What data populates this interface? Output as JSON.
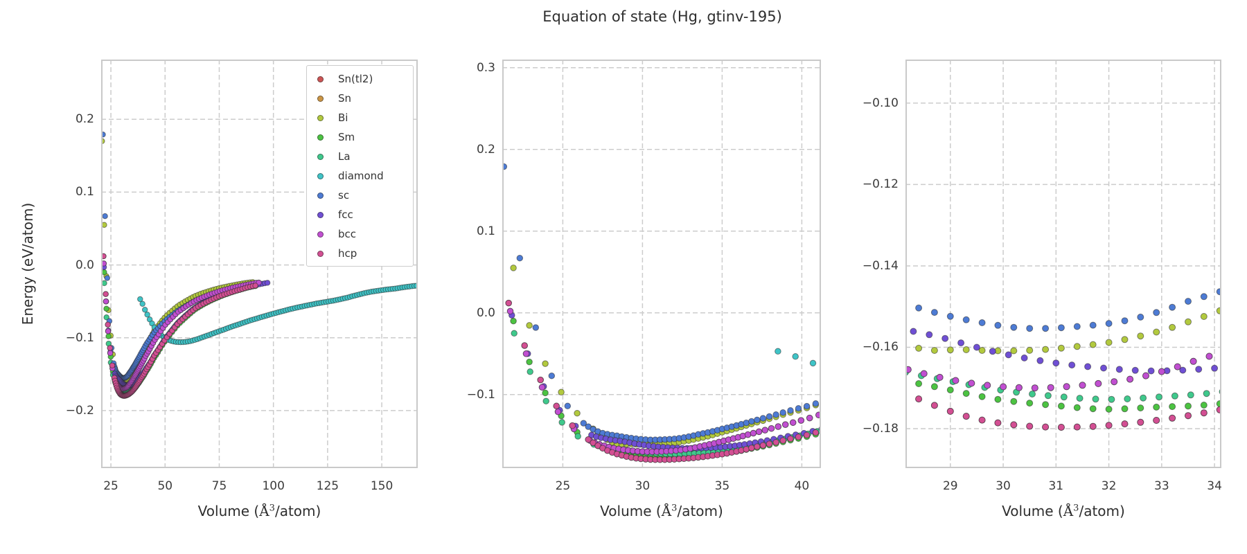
{
  "title": "Equation of state (Hg, gtinv-195)",
  "ylabel": "Energy (eV/atom)",
  "xlabel": {
    "pre": "Volume (",
    "ang": "Å",
    "sup": "3",
    "post": "/atom)",
    "full": "Volume (Å³/atom)"
  },
  "chart_data": {
    "type": "scatter",
    "title": "Equation of state (Hg, gtinv-195)",
    "ylabel": "Energy (eV/atom)",
    "xlabel": "Volume (Å³/atom)",
    "grid": "dashed gray, on",
    "legend_position": "upper right of first subplot",
    "note": "Three panels plot the same energy-volume scatter data at increasing zoom: full range, EOS minimum region, and fine minimum detail. Sn(tl2) and Sn coincide with (are hidden beneath) hcp and bcc respectively.",
    "subplots": [
      {
        "name": "overview",
        "xlim": [
          20.5,
          166.6
        ],
        "ylim": [
          -0.279,
          0.282
        ],
        "xticks": [
          25,
          50,
          75,
          100,
          125,
          150
        ],
        "xtick_labels": [
          "25",
          "50",
          "75",
          "100",
          "125",
          "150"
        ],
        "yticks": [
          0.2,
          0.1,
          0.0,
          -0.1,
          -0.2
        ],
        "ytick_labels": [
          "0.2",
          "0.1",
          "0.0",
          "−0.1",
          "−0.2"
        ],
        "marker_radius": 3.75
      },
      {
        "name": "minimum-region",
        "xlim": [
          21.2,
          41.2
        ],
        "ylim": [
          -0.19,
          0.31
        ],
        "xticks": [
          25,
          30,
          35,
          40
        ],
        "xtick_labels": [
          "25",
          "30",
          "35",
          "40"
        ],
        "yticks": [
          0.3,
          0.2,
          0.1,
          0.0,
          -0.1
        ],
        "ytick_labels": [
          "0.3",
          "0.2",
          "0.1",
          "0.0",
          "−0.1"
        ],
        "marker_radius": 4.25
      },
      {
        "name": "fine-detail",
        "xlim": [
          28.15,
          34.13
        ],
        "ylim": [
          -0.1897,
          -0.0893
        ],
        "xticks": [
          29,
          30,
          31,
          32,
          33,
          34
        ],
        "xtick_labels": [
          "29",
          "30",
          "31",
          "32",
          "33",
          "34"
        ],
        "yticks": [
          -0.1,
          -0.12,
          -0.14,
          -0.16,
          -0.18
        ],
        "ytick_labels": [
          "−0.10",
          "−0.12",
          "−0.14",
          "−0.16",
          "−0.18"
        ],
        "marker_radius": 4.5
      }
    ],
    "volume_sampling": {
      "left_step": 1.0,
      "dense_step_26_to_36": 0.3,
      "step_growth_past_36": 0.06,
      "max_step": 1.2,
      "diamond_step": 1.1
    },
    "series": [
      {
        "name": "Sn(tl2)",
        "color": "#cd5454",
        "points": [
          [
            21.6,
            0.012
          ],
          [
            22.6,
            -0.04
          ],
          [
            23.6,
            -0.082
          ],
          [
            24.6,
            -0.114
          ],
          [
            25.6,
            -0.138
          ],
          [
            26.6,
            -0.155
          ],
          [
            27.6,
            -0.1665
          ],
          [
            28.4,
            -0.1727
          ],
          [
            29.4,
            -0.1773
          ],
          [
            30.4,
            -0.1793
          ],
          [
            31.4,
            -0.1796
          ],
          [
            32.4,
            -0.1787
          ],
          [
            33.4,
            -0.177
          ],
          [
            34.5,
            -0.1743
          ],
          [
            35.5,
            -0.171
          ],
          [
            37,
            -0.1645
          ],
          [
            39,
            -0.1553
          ],
          [
            41.2,
            -0.1443
          ],
          [
            45,
            -0.1245
          ],
          [
            50,
            -0.1025
          ],
          [
            56,
            -0.08
          ],
          [
            64,
            -0.0595
          ],
          [
            73,
            -0.0455
          ],
          [
            82,
            -0.036
          ],
          [
            92.5,
            -0.028
          ]
        ]
      },
      {
        "name": "Sn",
        "color": "#cc9544",
        "points": [
          [
            21.7,
            0.002
          ],
          [
            22.7,
            -0.05
          ],
          [
            23.7,
            -0.091
          ],
          [
            24.7,
            -0.121
          ],
          [
            25.7,
            -0.142
          ],
          [
            26.7,
            -0.156
          ],
          [
            27.7,
            -0.1632
          ],
          [
            28.6,
            -0.1668
          ],
          [
            29.6,
            -0.1692
          ],
          [
            30.6,
            -0.17
          ],
          [
            31.6,
            -0.1692
          ],
          [
            32.6,
            -0.1673
          ],
          [
            33.7,
            -0.163
          ],
          [
            35,
            -0.157
          ],
          [
            37,
            -0.147
          ],
          [
            39,
            -0.1365
          ],
          [
            41.2,
            -0.124
          ],
          [
            45,
            -0.104
          ],
          [
            50,
            -0.0825
          ],
          [
            56,
            -0.0645
          ],
          [
            64,
            -0.049
          ],
          [
            73,
            -0.038
          ],
          [
            82,
            -0.0305
          ],
          [
            94,
            -0.024
          ]
        ]
      },
      {
        "name": "Bi",
        "color": "#b2c93e",
        "points": [
          [
            20.9,
            0.17
          ],
          [
            21.7,
            0.072
          ],
          [
            22.7,
            -0.004
          ],
          [
            23.8,
            -0.058
          ],
          [
            24.9,
            -0.097
          ],
          [
            26,
            -0.125
          ],
          [
            27.1,
            -0.145
          ],
          [
            28.2,
            -0.1592
          ],
          [
            29.3,
            -0.1606
          ],
          [
            30.4,
            -0.1608
          ],
          [
            31.4,
            -0.1598
          ],
          [
            32.4,
            -0.1578
          ],
          [
            33.55,
            -0.1535
          ],
          [
            35,
            -0.146
          ],
          [
            37,
            -0.135
          ],
          [
            39,
            -0.1235
          ],
          [
            41.2,
            -0.1105
          ],
          [
            45,
            -0.0905
          ],
          [
            50,
            -0.0715
          ],
          [
            56,
            -0.056
          ],
          [
            64,
            -0.0425
          ],
          [
            73,
            -0.0335
          ],
          [
            82,
            -0.0275
          ],
          [
            91,
            -0.0235
          ]
        ]
      },
      {
        "name": "Sm",
        "color": "#4cc342",
        "points": [
          [
            21.9,
            -0.01
          ],
          [
            22.9,
            -0.06
          ],
          [
            23.9,
            -0.098
          ],
          [
            24.9,
            -0.126
          ],
          [
            25.9,
            -0.146
          ],
          [
            26.9,
            -0.159
          ],
          [
            27.9,
            -0.167
          ],
          [
            28.9,
            -0.1702
          ],
          [
            29.9,
            -0.1728
          ],
          [
            30.9,
            -0.1742
          ],
          [
            31.9,
            -0.1752
          ],
          [
            32.9,
            -0.1747
          ],
          [
            33.9,
            -0.1741
          ],
          [
            35,
            -0.172
          ],
          [
            37,
            -0.1655
          ],
          [
            39,
            -0.157
          ],
          [
            41.2,
            -0.1465
          ],
          [
            45,
            -0.1275
          ],
          [
            50,
            -0.1045
          ],
          [
            56,
            -0.082
          ],
          [
            64,
            -0.061
          ],
          [
            73,
            -0.0465
          ],
          [
            82,
            -0.0365
          ],
          [
            92,
            -0.029
          ]
        ]
      },
      {
        "name": "La",
        "color": "#3fc98c",
        "points": [
          [
            21.95,
            -0.025
          ],
          [
            22.95,
            -0.072
          ],
          [
            23.95,
            -0.108
          ],
          [
            24.95,
            -0.134
          ],
          [
            25.95,
            -0.151
          ],
          [
            26.95,
            -0.161
          ],
          [
            27.95,
            -0.1655
          ],
          [
            28.95,
            -0.1682
          ],
          [
            29.95,
            -0.1705
          ],
          [
            30.95,
            -0.172
          ],
          [
            31.95,
            -0.1728
          ],
          [
            32.95,
            -0.1722
          ],
          [
            33.95,
            -0.1712
          ],
          [
            35,
            -0.169
          ],
          [
            37,
            -0.1625
          ],
          [
            39,
            -0.154
          ],
          [
            41.2,
            -0.1435
          ],
          [
            45,
            -0.1245
          ],
          [
            50,
            -0.1015
          ],
          [
            56,
            -0.079
          ],
          [
            64,
            -0.0585
          ],
          [
            73,
            -0.0445
          ],
          [
            82,
            -0.035
          ],
          [
            93,
            -0.0275
          ]
        ]
      },
      {
        "name": "diamond",
        "color": "#3fc4c7",
        "points": [
          [
            38.5,
            -0.047
          ],
          [
            40.7,
            -0.0615
          ],
          [
            43,
            -0.0755
          ],
          [
            46,
            -0.0895
          ],
          [
            49,
            -0.0985
          ],
          [
            52,
            -0.1035
          ],
          [
            55.5,
            -0.1058
          ],
          [
            59,
            -0.1058
          ],
          [
            63,
            -0.1035
          ],
          [
            68,
            -0.0985
          ],
          [
            74,
            -0.092
          ],
          [
            81,
            -0.0845
          ],
          [
            89,
            -0.0765
          ],
          [
            98,
            -0.0685
          ],
          [
            108,
            -0.0605
          ],
          [
            119,
            -0.0535
          ],
          [
            131,
            -0.047
          ],
          [
            144,
            -0.0375
          ],
          [
            156,
            -0.0325
          ],
          [
            166.5,
            -0.0285
          ]
        ]
      },
      {
        "name": "sc",
        "color": "#4d7bd4",
        "points": [
          [
            21.3,
            0.179
          ],
          [
            22.3,
            0.067
          ],
          [
            23.3,
            -0.018
          ],
          [
            24.3,
            -0.077
          ],
          [
            25.3,
            -0.114
          ],
          [
            26.3,
            -0.135
          ],
          [
            27.3,
            -0.146
          ],
          [
            28.45,
            -0.1505
          ],
          [
            29.4,
            -0.1535
          ],
          [
            30.4,
            -0.1553
          ],
          [
            31.4,
            -0.1549
          ],
          [
            32.4,
            -0.1532
          ],
          [
            33.5,
            -0.1487
          ],
          [
            35,
            -0.142
          ],
          [
            37,
            -0.132
          ],
          [
            39,
            -0.121
          ],
          [
            41.2,
            -0.109
          ],
          [
            45,
            -0.0925
          ],
          [
            50,
            -0.0765
          ],
          [
            56,
            -0.0625
          ],
          [
            64,
            -0.049
          ],
          [
            73,
            -0.039
          ],
          [
            82,
            -0.0315
          ],
          [
            90,
            -0.0265
          ]
        ]
      },
      {
        "name": "fcc",
        "color": "#6f4fd4",
        "points": [
          [
            21.8,
            -0.003
          ],
          [
            22.8,
            -0.05
          ],
          [
            23.8,
            -0.09
          ],
          [
            24.8,
            -0.119
          ],
          [
            25.8,
            -0.1385
          ],
          [
            26.8,
            -0.1495
          ],
          [
            27.8,
            -0.1545
          ],
          [
            28.8,
            -0.1575
          ],
          [
            29.8,
            -0.161
          ],
          [
            30.8,
            -0.1635
          ],
          [
            31.8,
            -0.165
          ],
          [
            32.8,
            -0.1658
          ],
          [
            33.8,
            -0.1653
          ],
          [
            35.2,
            -0.1638
          ],
          [
            37,
            -0.159
          ],
          [
            39,
            -0.1515
          ],
          [
            41.2,
            -0.142
          ],
          [
            45,
            -0.124
          ],
          [
            50,
            -0.1015
          ],
          [
            56,
            -0.079
          ],
          [
            64,
            -0.0585
          ],
          [
            73,
            -0.0445
          ],
          [
            82,
            -0.035
          ],
          [
            88,
            -0.0305
          ],
          [
            97.5,
            -0.0245
          ]
        ]
      },
      {
        "name": "bcc",
        "color": "#c14fd1",
        "points": [
          [
            21.7,
            0.002
          ],
          [
            22.7,
            -0.05
          ],
          [
            23.7,
            -0.091
          ],
          [
            24.7,
            -0.121
          ],
          [
            25.7,
            -0.142
          ],
          [
            26.7,
            -0.156
          ],
          [
            27.7,
            -0.1632
          ],
          [
            28.6,
            -0.1668
          ],
          [
            29.6,
            -0.1692
          ],
          [
            30.6,
            -0.17
          ],
          [
            31.6,
            -0.1692
          ],
          [
            32.6,
            -0.1673
          ],
          [
            33.7,
            -0.163
          ],
          [
            35,
            -0.157
          ],
          [
            37,
            -0.147
          ],
          [
            39,
            -0.1365
          ],
          [
            41.2,
            -0.124
          ],
          [
            45,
            -0.104
          ],
          [
            50,
            -0.0825
          ],
          [
            56,
            -0.0645
          ],
          [
            64,
            -0.049
          ],
          [
            73,
            -0.038
          ],
          [
            82,
            -0.0305
          ],
          [
            94,
            -0.024
          ]
        ]
      },
      {
        "name": "hcp",
        "color": "#d34f93",
        "points": [
          [
            21.6,
            0.012
          ],
          [
            22.6,
            -0.04
          ],
          [
            23.6,
            -0.082
          ],
          [
            24.6,
            -0.114
          ],
          [
            25.6,
            -0.138
          ],
          [
            26.6,
            -0.155
          ],
          [
            27.6,
            -0.1665
          ],
          [
            28.4,
            -0.1727
          ],
          [
            29.4,
            -0.1773
          ],
          [
            30.4,
            -0.1793
          ],
          [
            31.4,
            -0.1796
          ],
          [
            32.4,
            -0.1787
          ],
          [
            33.4,
            -0.177
          ],
          [
            34.5,
            -0.1743
          ],
          [
            35.5,
            -0.171
          ],
          [
            37,
            -0.1645
          ],
          [
            39,
            -0.1553
          ],
          [
            41.2,
            -0.1443
          ],
          [
            45,
            -0.1245
          ],
          [
            50,
            -0.1025
          ],
          [
            56,
            -0.08
          ],
          [
            64,
            -0.0595
          ],
          [
            73,
            -0.0455
          ],
          [
            82,
            -0.036
          ],
          [
            92.5,
            -0.028
          ]
        ]
      }
    ],
    "style": {
      "grid_color": "#cccccc",
      "spine_color": "#c9c9c9",
      "marker_edge_color": "rgba(40,40,40,0.55)",
      "text_color": "#2e2e2e",
      "tick_color": "#3c3c3c",
      "background": "#ffffff"
    }
  }
}
